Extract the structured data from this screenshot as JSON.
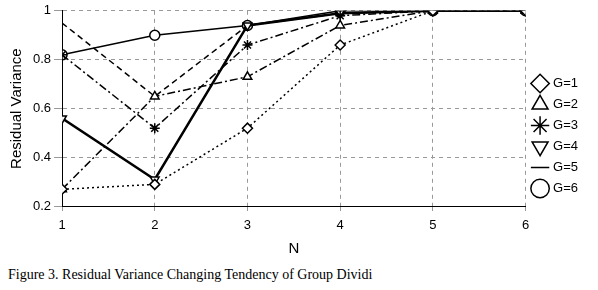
{
  "chart_data": {
    "type": "line",
    "caption": "Figure 3.  Residual Variance Changing Tendency of Group Dividi",
    "x_label": "N",
    "y_label": "Residual Variance",
    "x": [
      1,
      2,
      3,
      4,
      5,
      6
    ],
    "xlim": [
      1,
      6
    ],
    "xticks": [
      1,
      2,
      3,
      4,
      5,
      6
    ],
    "ylim": [
      0.2,
      1
    ],
    "yticks": [
      0.2,
      0.4,
      0.6,
      0.8,
      1
    ],
    "grid": true,
    "legend": "right",
    "series": [
      {
        "name": "G=1",
        "color": "#000000",
        "marker": "diamond",
        "line_style": "dotted",
        "values": [
          0.27,
          0.29,
          0.52,
          0.86,
          1,
          1
        ]
      },
      {
        "name": "G=2",
        "color": "#000000",
        "marker": "triangle",
        "line_style": "dashdot",
        "values": [
          0.27,
          0.65,
          0.73,
          0.94,
          1,
          1
        ]
      },
      {
        "name": "G=3",
        "color": "#000000",
        "marker": "star",
        "line_style": "dashdot",
        "values": [
          0.82,
          0.52,
          0.86,
          0.98,
          1,
          1
        ]
      },
      {
        "name": "G=4",
        "color": "#000000",
        "marker": "triangle_down",
        "line_style": "solid",
        "values": [
          0.56,
          0.31,
          0.94,
          0.99,
          1,
          1
        ]
      },
      {
        "name": "G=5",
        "color": "#000000",
        "marker": "none",
        "line_style": "dashed",
        "values": [
          0.95,
          0.65,
          0.94,
          0.99,
          1,
          1
        ]
      },
      {
        "name": "G=6",
        "color": "#000000",
        "marker": "circle",
        "line_style": "solid",
        "values": [
          0.82,
          0.9,
          0.94,
          1,
          1,
          1
        ]
      }
    ]
  }
}
